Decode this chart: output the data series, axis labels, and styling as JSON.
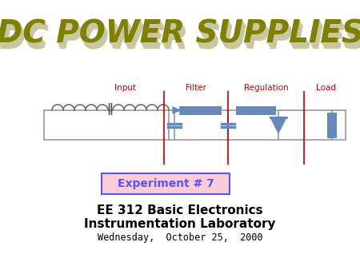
{
  "title": "DC POWER SUPPLIES",
  "title_color": "#808000",
  "title_shadow_color": "#c8c8a0",
  "bg_color": "#ffffff",
  "experiment_text": "Experiment # 7",
  "experiment_bg": "#ffccd5",
  "experiment_color": "#5555ff",
  "line1": "EE 312 Basic Electronics",
  "line2": "Instrumentation Laboratory",
  "line3": "Wednesday,  October 25,  2000",
  "section_labels": [
    "Input",
    "Filter",
    "Regulation",
    "Load"
  ],
  "section_label_color": "#cc0000",
  "component_color": "#6688bb",
  "wire_color": "#999999",
  "divider_color": "#cc0000",
  "coil_color": "#777777",
  "core_color": "#444444"
}
